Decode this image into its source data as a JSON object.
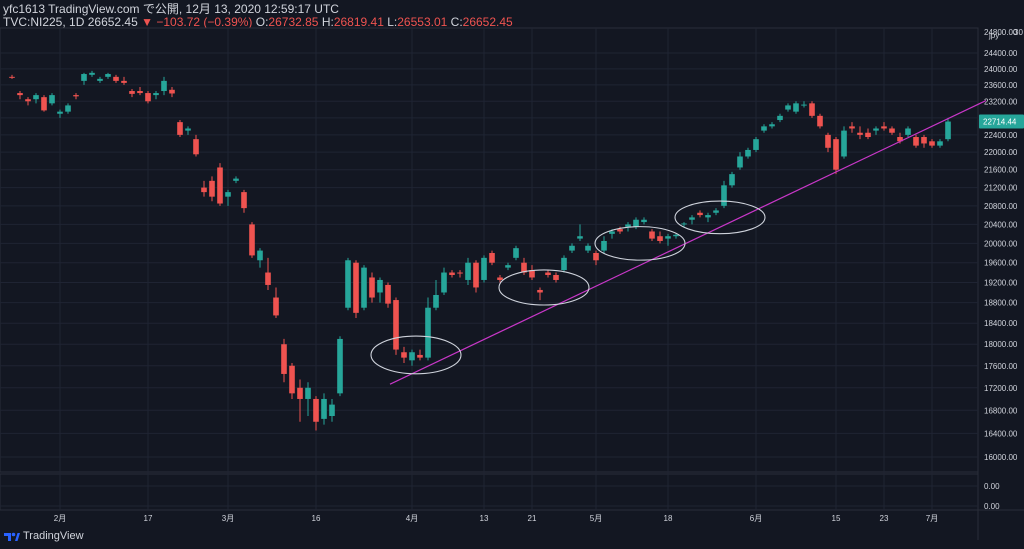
{
  "header": {
    "publisher_line": "yfc1613 TradingView.com で公開, 12月 13, 2020 12:59:17 UTC",
    "symbol": "TVC:NI225, 1D",
    "last": "26652.45",
    "change": "▼ −103.72 (−0.39%)",
    "o_label": "O:",
    "o_value": "26732.85",
    "h_label": "H:",
    "h_value": "26819.41",
    "l_label": "L:",
    "l_value": "26553.01",
    "c_label": "C:",
    "c_value": "26652.45"
  },
  "footer": {
    "brand": "TradingView"
  },
  "colors": {
    "background": "#131722",
    "up": "#26a69a",
    "down": "#ef5350",
    "trendline": "#c837c8",
    "ellipse": "#cfd3dc",
    "grid": "#1f2433",
    "text": "#d1d4dc"
  },
  "chart_data": {
    "type": "candlestick",
    "symbol": "TVC:NI225",
    "interval": "1D",
    "currency": "jpy",
    "last_price_label": "22714.44",
    "y_axis": {
      "scale": "log",
      "ticks": [
        "16000.00",
        "16400.00",
        "16800.00",
        "17200.00",
        "17600.00",
        "18000.00",
        "18400.00",
        "18800.00",
        "19200.00",
        "19600.00",
        "20000.00",
        "20400.00",
        "20800.00",
        "21200.00",
        "21600.00",
        "22000.00",
        "22400.00",
        "22800.00",
        "23200.00",
        "23600.00",
        "24000.00",
        "24400.00"
      ],
      "top_partial": [
        "24800.00",
        "30"
      ]
    },
    "sub_axis": {
      "ticks": [
        "0.00",
        "0.00"
      ]
    },
    "x_axis": {
      "ticks": [
        {
          "label": "2月",
          "index": 6
        },
        {
          "label": "17",
          "index": 17
        },
        {
          "label": "3月",
          "index": 27
        },
        {
          "label": "16",
          "index": 38
        },
        {
          "label": "4月",
          "index": 50
        },
        {
          "label": "13",
          "index": 59
        },
        {
          "label": "21",
          "index": 65
        },
        {
          "label": "5月",
          "index": 73
        },
        {
          "label": "18",
          "index": 82
        },
        {
          "label": "6月",
          "index": 93
        },
        {
          "label": "15",
          "index": 103
        },
        {
          "label": "23",
          "index": 109
        },
        {
          "label": "7月",
          "index": 115
        }
      ]
    },
    "candles": [
      {
        "o": 23800,
        "h": 23850,
        "l": 23750,
        "c": 23790
      },
      {
        "o": 23400,
        "h": 23450,
        "l": 23250,
        "c": 23350
      },
      {
        "o": 23250,
        "h": 23300,
        "l": 23100,
        "c": 23200
      },
      {
        "o": 23250,
        "h": 23400,
        "l": 23150,
        "c": 23350
      },
      {
        "o": 23300,
        "h": 23350,
        "l": 22950,
        "c": 22980
      },
      {
        "o": 23150,
        "h": 23400,
        "l": 23100,
        "c": 23350
      },
      {
        "o": 22900,
        "h": 23000,
        "l": 22800,
        "c": 22950
      },
      {
        "o": 22950,
        "h": 23150,
        "l": 22900,
        "c": 23100
      },
      {
        "o": 23350,
        "h": 23400,
        "l": 23250,
        "c": 23320
      },
      {
        "o": 23700,
        "h": 23900,
        "l": 23600,
        "c": 23870
      },
      {
        "o": 23850,
        "h": 23950,
        "l": 23800,
        "c": 23900
      },
      {
        "o": 23700,
        "h": 23800,
        "l": 23650,
        "c": 23750
      },
      {
        "o": 23800,
        "h": 23900,
        "l": 23750,
        "c": 23870
      },
      {
        "o": 23800,
        "h": 23850,
        "l": 23650,
        "c": 23700
      },
      {
        "o": 23700,
        "h": 23800,
        "l": 23600,
        "c": 23650
      },
      {
        "o": 23450,
        "h": 23500,
        "l": 23300,
        "c": 23380
      },
      {
        "o": 23450,
        "h": 23550,
        "l": 23350,
        "c": 23400
      },
      {
        "o": 23400,
        "h": 23450,
        "l": 23150,
        "c": 23200
      },
      {
        "o": 23350,
        "h": 23450,
        "l": 23250,
        "c": 23400
      },
      {
        "o": 23450,
        "h": 23800,
        "l": 23350,
        "c": 23700
      },
      {
        "o": 23480,
        "h": 23550,
        "l": 23300,
        "c": 23390
      },
      {
        "o": 22700,
        "h": 22750,
        "l": 22350,
        "c": 22400
      },
      {
        "o": 22500,
        "h": 22600,
        "l": 22400,
        "c": 22550
      },
      {
        "o": 22300,
        "h": 22400,
        "l": 21900,
        "c": 21950
      },
      {
        "o": 21200,
        "h": 21350,
        "l": 21000,
        "c": 21100
      },
      {
        "o": 21350,
        "h": 21450,
        "l": 20900,
        "c": 21000
      },
      {
        "o": 21650,
        "h": 21750,
        "l": 20800,
        "c": 20850
      },
      {
        "o": 21000,
        "h": 21150,
        "l": 20800,
        "c": 21100
      },
      {
        "o": 21350,
        "h": 21450,
        "l": 21300,
        "c": 21400
      },
      {
        "o": 21100,
        "h": 21150,
        "l": 20650,
        "c": 20750
      },
      {
        "o": 20400,
        "h": 20450,
        "l": 19700,
        "c": 19750
      },
      {
        "o": 19650,
        "h": 19900,
        "l": 19500,
        "c": 19850
      },
      {
        "o": 19400,
        "h": 19700,
        "l": 19050,
        "c": 19150
      },
      {
        "o": 18900,
        "h": 19100,
        "l": 18500,
        "c": 18550
      },
      {
        "o": 18000,
        "h": 18100,
        "l": 17300,
        "c": 17450
      },
      {
        "o": 17600,
        "h": 17650,
        "l": 17000,
        "c": 17100
      },
      {
        "o": 17200,
        "h": 17350,
        "l": 16600,
        "c": 17000
      },
      {
        "o": 17000,
        "h": 17300,
        "l": 16700,
        "c": 17200
      },
      {
        "o": 17000,
        "h": 17050,
        "l": 16450,
        "c": 16600
      },
      {
        "o": 16650,
        "h": 17100,
        "l": 16550,
        "c": 17000
      },
      {
        "o": 16700,
        "h": 17000,
        "l": 16600,
        "c": 16900
      },
      {
        "o": 17100,
        "h": 18150,
        "l": 17050,
        "c": 18100
      },
      {
        "o": 18700,
        "h": 19700,
        "l": 18650,
        "c": 19650
      },
      {
        "o": 19600,
        "h": 19650,
        "l": 18500,
        "c": 18600
      },
      {
        "o": 18700,
        "h": 19550,
        "l": 18650,
        "c": 19500
      },
      {
        "o": 19300,
        "h": 19400,
        "l": 18800,
        "c": 18900
      },
      {
        "o": 19000,
        "h": 19300,
        "l": 18800,
        "c": 19250
      },
      {
        "o": 19150,
        "h": 19200,
        "l": 18700,
        "c": 18780
      },
      {
        "o": 18850,
        "h": 18900,
        "l": 17800,
        "c": 17900
      },
      {
        "o": 17850,
        "h": 17950,
        "l": 17650,
        "c": 17750
      },
      {
        "o": 17700,
        "h": 17900,
        "l": 17600,
        "c": 17850
      },
      {
        "o": 17800,
        "h": 17900,
        "l": 17700,
        "c": 17750
      },
      {
        "o": 17750,
        "h": 18900,
        "l": 17700,
        "c": 18700
      },
      {
        "o": 18700,
        "h": 19250,
        "l": 18650,
        "c": 18950
      },
      {
        "o": 19000,
        "h": 19500,
        "l": 18950,
        "c": 19400
      },
      {
        "o": 19400,
        "h": 19450,
        "l": 19300,
        "c": 19350
      },
      {
        "o": 19400,
        "h": 19450,
        "l": 19300,
        "c": 19380
      },
      {
        "o": 19250,
        "h": 19700,
        "l": 19150,
        "c": 19600
      },
      {
        "o": 19600,
        "h": 19650,
        "l": 19000,
        "c": 19100
      },
      {
        "o": 19250,
        "h": 19750,
        "l": 19200,
        "c": 19700
      },
      {
        "o": 19800,
        "h": 19850,
        "l": 19550,
        "c": 19600
      },
      {
        "o": 19300,
        "h": 19350,
        "l": 19200,
        "c": 19250
      },
      {
        "o": 19500,
        "h": 19600,
        "l": 19450,
        "c": 19550
      },
      {
        "o": 19700,
        "h": 19950,
        "l": 19650,
        "c": 19900
      },
      {
        "o": 19600,
        "h": 19700,
        "l": 19350,
        "c": 19400
      },
      {
        "o": 19450,
        "h": 19550,
        "l": 19250,
        "c": 19300
      },
      {
        "o": 19050,
        "h": 19100,
        "l": 18850,
        "c": 19000
      },
      {
        "o": 19400,
        "h": 19450,
        "l": 19300,
        "c": 19350
      },
      {
        "o": 19350,
        "h": 19400,
        "l": 19200,
        "c": 19250
      },
      {
        "o": 19450,
        "h": 19750,
        "l": 19400,
        "c": 19700
      },
      {
        "o": 19850,
        "h": 20000,
        "l": 19800,
        "c": 19950
      },
      {
        "o": 20100,
        "h": 20400,
        "l": 20050,
        "c": 20150
      },
      {
        "o": 19850,
        "h": 20000,
        "l": 19800,
        "c": 19950
      },
      {
        "o": 19800,
        "h": 19850,
        "l": 19550,
        "c": 19650
      },
      {
        "o": 19850,
        "h": 20150,
        "l": 19800,
        "c": 20050
      },
      {
        "o": 20200,
        "h": 20300,
        "l": 20100,
        "c": 20250
      },
      {
        "o": 20300,
        "h": 20350,
        "l": 20200,
        "c": 20250
      },
      {
        "o": 20350,
        "h": 20450,
        "l": 20250,
        "c": 20400
      },
      {
        "o": 20350,
        "h": 20550,
        "l": 20300,
        "c": 20500
      },
      {
        "o": 20450,
        "h": 20550,
        "l": 20400,
        "c": 20500
      },
      {
        "o": 20250,
        "h": 20300,
        "l": 20050,
        "c": 20100
      },
      {
        "o": 20150,
        "h": 20250,
        "l": 20000,
        "c": 20050
      },
      {
        "o": 20100,
        "h": 20200,
        "l": 19950,
        "c": 20150
      },
      {
        "o": 20150,
        "h": 20200,
        "l": 20100,
        "c": 20180
      },
      {
        "o": 20400,
        "h": 20450,
        "l": 20350,
        "c": 20420
      },
      {
        "o": 20500,
        "h": 20600,
        "l": 20400,
        "c": 20550
      },
      {
        "o": 20650,
        "h": 20700,
        "l": 20550,
        "c": 20600
      },
      {
        "o": 20550,
        "h": 20650,
        "l": 20450,
        "c": 20600
      },
      {
        "o": 20650,
        "h": 20750,
        "l": 20600,
        "c": 20700
      },
      {
        "o": 20800,
        "h": 21350,
        "l": 20750,
        "c": 21250
      },
      {
        "o": 21250,
        "h": 21550,
        "l": 21200,
        "c": 21500
      },
      {
        "o": 21650,
        "h": 22000,
        "l": 21600,
        "c": 21900
      },
      {
        "o": 21900,
        "h": 22100,
        "l": 21850,
        "c": 22050
      },
      {
        "o": 22050,
        "h": 22350,
        "l": 22000,
        "c": 22300
      },
      {
        "o": 22500,
        "h": 22650,
        "l": 22450,
        "c": 22600
      },
      {
        "o": 22600,
        "h": 22700,
        "l": 22550,
        "c": 22650
      },
      {
        "o": 22750,
        "h": 22900,
        "l": 22700,
        "c": 22850
      },
      {
        "o": 23000,
        "h": 23150,
        "l": 22950,
        "c": 23100
      },
      {
        "o": 22950,
        "h": 23200,
        "l": 22900,
        "c": 23150
      },
      {
        "o": 23100,
        "h": 23200,
        "l": 23050,
        "c": 23120
      },
      {
        "o": 23150,
        "h": 23200,
        "l": 22800,
        "c": 22850
      },
      {
        "o": 22850,
        "h": 22900,
        "l": 22550,
        "c": 22600
      },
      {
        "o": 22400,
        "h": 22450,
        "l": 22000,
        "c": 22100
      },
      {
        "o": 22300,
        "h": 22350,
        "l": 21500,
        "c": 21600
      },
      {
        "o": 21900,
        "h": 22600,
        "l": 21850,
        "c": 22500
      },
      {
        "o": 22600,
        "h": 22700,
        "l": 22450,
        "c": 22550
      },
      {
        "o": 22450,
        "h": 22600,
        "l": 22300,
        "c": 22400
      },
      {
        "o": 22450,
        "h": 22550,
        "l": 22300,
        "c": 22350
      },
      {
        "o": 22500,
        "h": 22600,
        "l": 22400,
        "c": 22550
      },
      {
        "o": 22600,
        "h": 22700,
        "l": 22500,
        "c": 22550
      },
      {
        "o": 22550,
        "h": 22600,
        "l": 22400,
        "c": 22450
      },
      {
        "o": 22350,
        "h": 22450,
        "l": 22200,
        "c": 22250
      },
      {
        "o": 22400,
        "h": 22600,
        "l": 22350,
        "c": 22550
      },
      {
        "o": 22350,
        "h": 22400,
        "l": 22100,
        "c": 22150
      },
      {
        "o": 22350,
        "h": 22400,
        "l": 22100,
        "c": 22200
      },
      {
        "o": 22250,
        "h": 22300,
        "l": 22100,
        "c": 22150
      },
      {
        "o": 22150,
        "h": 22300,
        "l": 22100,
        "c": 22250
      },
      {
        "o": 22300,
        "h": 22800,
        "l": 22250,
        "c": 22714
      }
    ],
    "trendline": {
      "from": {
        "index": 48,
        "price": 17300
      },
      "to": {
        "index": 121,
        "price": 23000
      }
    },
    "ellipses": [
      {
        "center_index": 50,
        "center_price": 17800,
        "rx_bars": 6,
        "ry_price": 700
      },
      {
        "center_index": 66,
        "center_price": 19100,
        "rx_bars": 6,
        "ry_price": 700
      },
      {
        "center_index": 78,
        "center_price": 20000,
        "rx_bars": 6,
        "ry_price": 700
      },
      {
        "center_index": 88,
        "center_price": 20550,
        "rx_bars": 6,
        "ry_price": 700
      }
    ]
  }
}
